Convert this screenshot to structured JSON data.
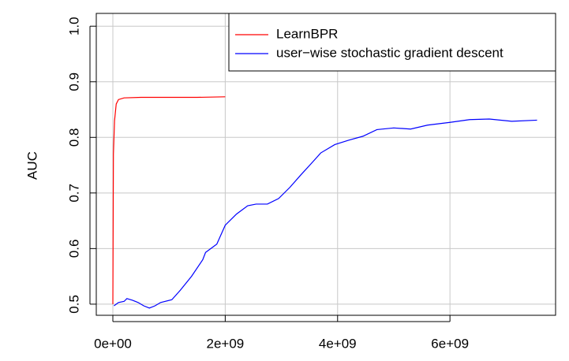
{
  "chart_data": {
    "type": "line",
    "y_label": "AUC",
    "xlim": [
      -295000000.0,
      7880000000.0
    ],
    "ylim": [
      0.48,
      1.023
    ],
    "xticks": [
      {
        "value": 0,
        "label": "0e+00"
      },
      {
        "value": 2000000000.0,
        "label": "2e+09"
      },
      {
        "value": 4000000000.0,
        "label": "4e+09"
      },
      {
        "value": 6000000000.0,
        "label": "6e+09"
      }
    ],
    "yticks": [
      0.5,
      0.6,
      0.7,
      0.8,
      0.9,
      {
        "value": 1.0,
        "label": "1.0"
      }
    ],
    "grid": true,
    "legend": "top-right",
    "series": [
      {
        "name": "LearnBPR",
        "color": "#ff0000",
        "x": [
          0,
          10000000.0,
          30000000.0,
          60000000.0,
          100000000.0,
          200000000.0,
          500000000.0,
          1000000000.0,
          1500000000.0,
          2000000000.0
        ],
        "values": [
          0.5,
          0.77,
          0.83,
          0.86,
          0.868,
          0.871,
          0.872,
          0.872,
          0.872,
          0.873
        ]
      },
      {
        "name": "user−wise stochastic gradient descent",
        "color": "#0000ff",
        "x": [
          20000000.0,
          100000000.0,
          200000000.0,
          250000000.0,
          350000000.0,
          450000000.0,
          550000000.0,
          650000000.0,
          750000000.0,
          850000000.0,
          1050000000.0,
          1200000000.0,
          1400000000.0,
          1600000000.0,
          1650000000.0,
          1850000000.0,
          2000000000.0,
          2200000000.0,
          2400000000.0,
          2550000000.0,
          2750000000.0,
          2950000000.0,
          3150000000.0,
          3350000000.0,
          3550000000.0,
          3700000000.0,
          3950000000.0,
          4200000000.0,
          4450000000.0,
          4700000000.0,
          5000000000.0,
          5300000000.0,
          5600000000.0,
          6000000000.0,
          6350000000.0,
          6700000000.0,
          7100000000.0,
          7550000000.0
        ],
        "values": [
          0.497,
          0.503,
          0.505,
          0.51,
          0.507,
          0.503,
          0.497,
          0.493,
          0.497,
          0.503,
          0.508,
          0.525,
          0.55,
          0.58,
          0.593,
          0.608,
          0.642,
          0.662,
          0.677,
          0.68,
          0.68,
          0.69,
          0.71,
          0.733,
          0.755,
          0.772,
          0.787,
          0.795,
          0.802,
          0.814,
          0.817,
          0.815,
          0.822,
          0.827,
          0.832,
          0.833,
          0.829,
          0.831
        ]
      }
    ]
  }
}
